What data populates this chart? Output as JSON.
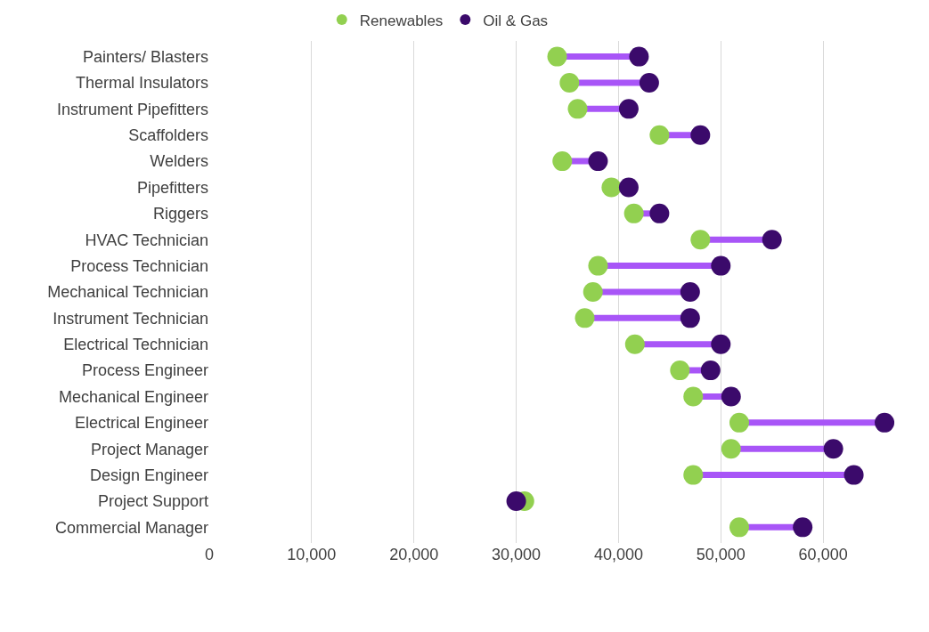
{
  "chart_data": {
    "type": "scatter",
    "orientation": "horizontal",
    "categories": [
      "Painters/ Blasters",
      "Thermal Insulators",
      "Instrument Pipefitters",
      "Scaffolders",
      "Welders",
      "Pipefitters",
      "Riggers",
      "HVAC Technician",
      "Process Technician",
      "Mechanical Technician",
      "Instrument Technician",
      "Electrical Technician",
      "Process Engineer",
      "Mechanical Engineer",
      "Electrical Engineer",
      "Project Manager",
      "Design Engineer",
      "Project Support",
      "Commercial Manager"
    ],
    "series": [
      {
        "name": "Renewables",
        "color": "#92d050",
        "values": [
          34000,
          35200,
          36000,
          44000,
          34500,
          39300,
          41500,
          48000,
          38000,
          37500,
          36700,
          41600,
          46000,
          47300,
          51800,
          51000,
          47300,
          30800,
          51800
        ]
      },
      {
        "name": "Oil & Gas",
        "color": "#3b0a6b",
        "values": [
          42000,
          43000,
          41000,
          48000,
          38000,
          41000,
          44000,
          55000,
          50000,
          47000,
          47000,
          50000,
          49000,
          51000,
          66000,
          61000,
          63000,
          30000,
          58000
        ]
      }
    ],
    "xlim": [
      0,
      70000
    ],
    "xticks": [
      {
        "value": 0,
        "label": "0"
      },
      {
        "value": 10000,
        "label": "10,000"
      },
      {
        "value": 20000,
        "label": "20,000"
      },
      {
        "value": 30000,
        "label": "30,000"
      },
      {
        "value": 40000,
        "label": "40,000"
      },
      {
        "value": 50000,
        "label": "50,000"
      },
      {
        "value": 60000,
        "label": "60,000"
      }
    ],
    "grid": "x",
    "legend": "top",
    "marker": "circle"
  }
}
